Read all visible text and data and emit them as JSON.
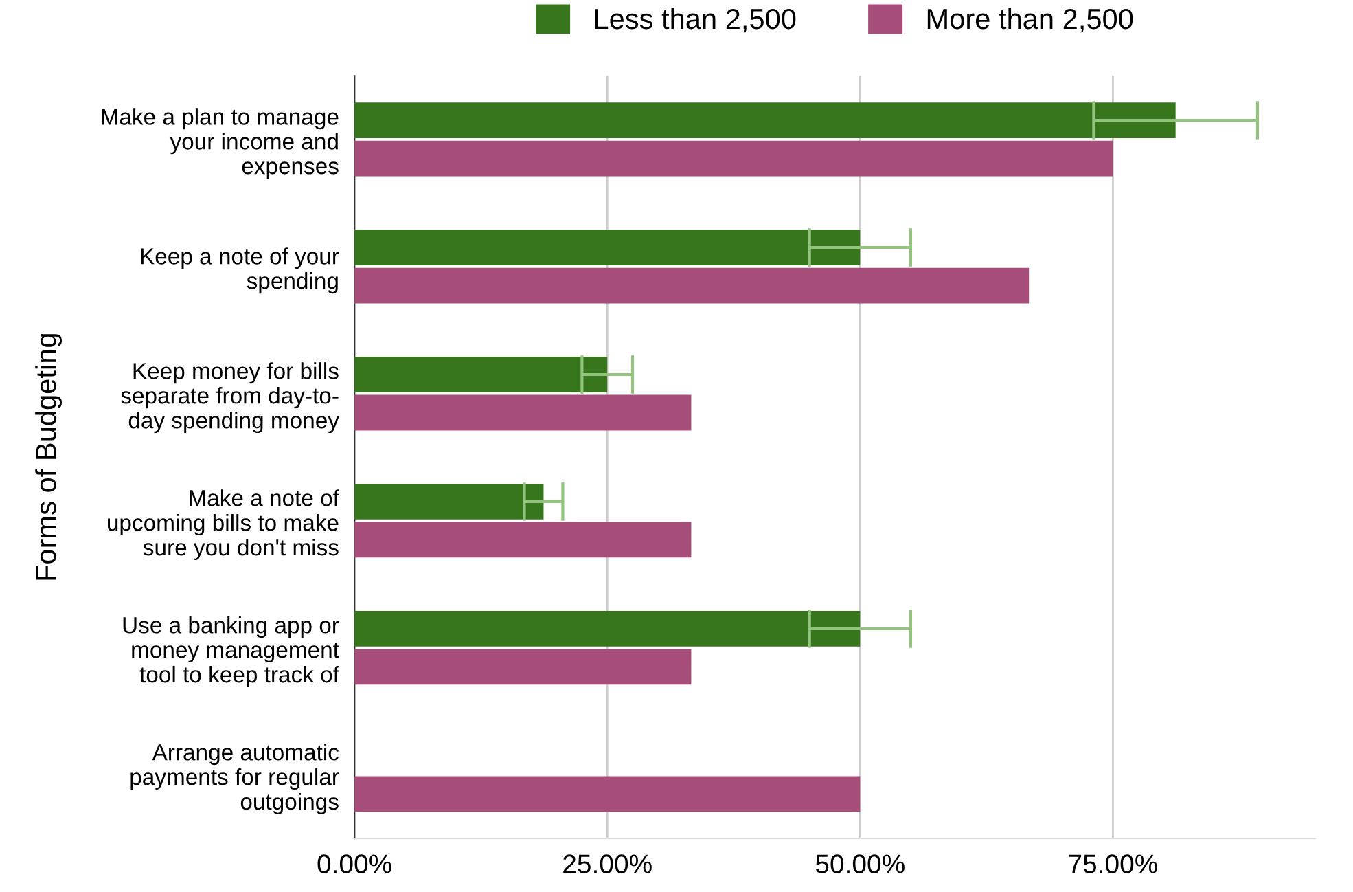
{
  "chart_data": {
    "type": "bar",
    "orientation": "horizontal",
    "ylabel": "Forms of Budgeting",
    "categories": [
      "Make a plan to manage\nyour income and\nexpenses",
      "Keep a note of your\nspending",
      "Keep money for bills\nseparate from day-to-\nday spending money",
      "Make a note of\nupcoming bills to make\nsure you don't miss",
      "Use a banking app or\nmoney management\ntool to keep track of",
      "Arrange automatic\npayments for regular\noutgoings"
    ],
    "series": [
      {
        "name": "Less than 2,500",
        "color": "#38761d",
        "values": [
          81.2,
          50,
          25,
          18.7,
          50,
          0
        ],
        "errors": [
          8.1,
          5,
          2.5,
          1.9,
          5,
          null
        ]
      },
      {
        "name": "More than 2,500",
        "color": "#a64d79",
        "values": [
          75,
          66.7,
          33.3,
          33.3,
          33.3,
          50
        ]
      }
    ],
    "xticks": [
      {
        "value": 0,
        "label": "0.00%"
      },
      {
        "value": 25,
        "label": "25.00%"
      },
      {
        "value": 50,
        "label": "50.00%"
      },
      {
        "value": 75,
        "label": "75.00%"
      }
    ],
    "xlim": [
      0,
      95
    ],
    "grid": "x",
    "legend": "top"
  }
}
